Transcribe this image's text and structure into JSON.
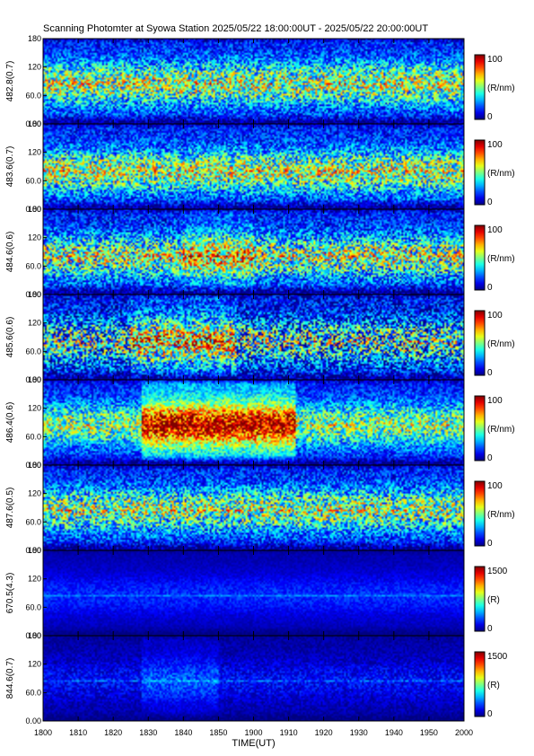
{
  "title": "Scanning Photomter at Syowa Station 2025/05/22 18:00:00UT - 2025/05/22 20:00:00UT",
  "chart_data": {
    "type": "heatmap",
    "xlabel": "TIME(UT)",
    "x_ticks": [
      "1800",
      "1810",
      "1820",
      "1830",
      "1840",
      "1850",
      "1900",
      "1910",
      "1920",
      "1930",
      "1940",
      "1950",
      "2000"
    ],
    "y_ticks": [
      "0.00",
      "60.0",
      "120",
      "180"
    ],
    "ylim": [
      0,
      180
    ],
    "panels": [
      {
        "label": "482.8(0.7)",
        "cbar_max": "100",
        "cbar_min": "0",
        "unit": "(R/nm)",
        "band_y": 85,
        "level": 0.42,
        "enh": [
          0,
          0,
          0
        ],
        "noise": 0.42
      },
      {
        "label": "483.6(0.7)",
        "cbar_max": "100",
        "cbar_min": "0",
        "unit": "(R/nm)",
        "band_y": 80,
        "level": 0.42,
        "enh": [
          0,
          0,
          0
        ],
        "noise": 0.42
      },
      {
        "label": "484.6(0.6)",
        "cbar_max": "100",
        "cbar_min": "0",
        "unit": "(R/nm)",
        "band_y": 80,
        "level": 0.4,
        "enh": [
          0.1,
          1840,
          1900
        ],
        "noise": 0.45
      },
      {
        "label": "485.6(0.6)",
        "cbar_max": "100",
        "cbar_min": "0",
        "unit": "(R/nm)",
        "band_y": 80,
        "level": 0.32,
        "enh": [
          0.15,
          1825,
          1855
        ],
        "noise": 0.55
      },
      {
        "label": "486.4(0.6)",
        "cbar_max": "100",
        "cbar_min": "0",
        "unit": "(R/nm)",
        "band_y": 85,
        "level": 0.4,
        "enh": [
          0.28,
          1828,
          1912
        ],
        "noise": 0.35
      },
      {
        "label": "487.6(0.5)",
        "cbar_max": "100",
        "cbar_min": "0",
        "unit": "(R/nm)",
        "band_y": 85,
        "level": 0.4,
        "enh": [
          0,
          0,
          0
        ],
        "noise": 0.42
      },
      {
        "label": "670.5(4.3)",
        "cbar_max": "1500",
        "cbar_min": "0",
        "unit": "(R)",
        "band_y": 85,
        "level": 0.13,
        "enh": [
          0,
          0,
          0
        ],
        "noise": 0.08
      },
      {
        "label": "844.6(0.7)",
        "cbar_max": "1500",
        "cbar_min": "0",
        "unit": "(R)",
        "band_y": 85,
        "level": 0.1,
        "enh": [
          0.06,
          1828,
          1850
        ],
        "noise": 0.12
      }
    ]
  }
}
